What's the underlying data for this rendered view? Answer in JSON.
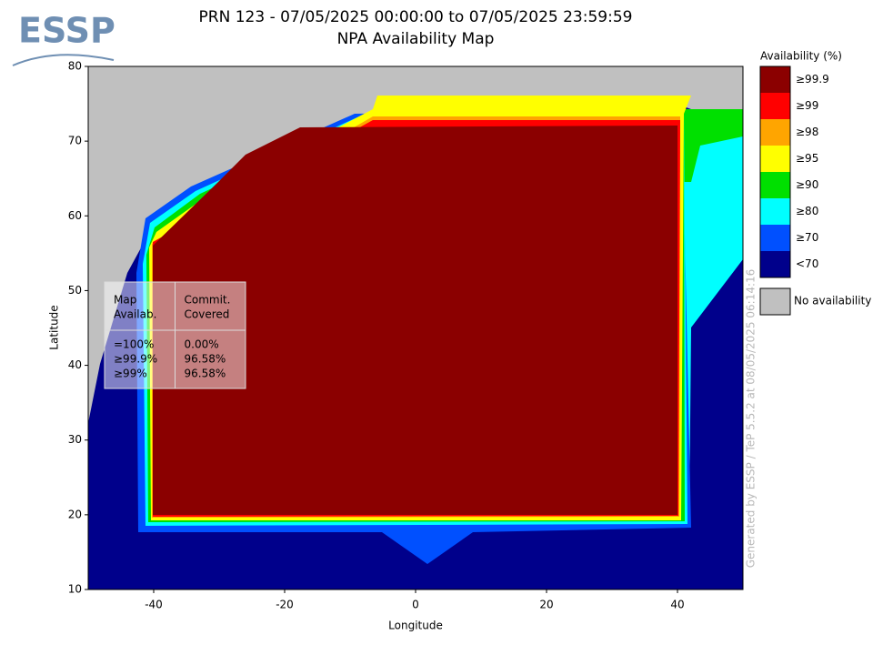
{
  "logo": "ESSP",
  "chart_data": {
    "type": "map",
    "title": "PRN 123 - 07/05/2025 00:00:00 to 07/05/2025 23:59:59",
    "subtitle": "NPA Availability Map",
    "x_label": "Longitude",
    "y_label": "Latitude",
    "xlim": [
      -50,
      50
    ],
    "xticks": [
      -40,
      -20,
      0,
      20,
      40
    ],
    "ylim": [
      10,
      80
    ],
    "yticks": [
      10,
      20,
      30,
      40,
      50,
      60,
      70,
      80
    ],
    "legend": {
      "title": "Availability (%)",
      "entries": [
        {
          "name": "≥99.9",
          "color": "#8b0000"
        },
        {
          "name": "≥99",
          "color": "#ff0000"
        },
        {
          "name": "≥98",
          "color": "#ffa500"
        },
        {
          "name": "≥95",
          "color": "#ffff00"
        },
        {
          "name": "≥90",
          "color": "#00e000"
        },
        {
          "name": "≥80",
          "color": "#00ffff"
        },
        {
          "name": "≥70",
          "color": "#0050ff"
        },
        {
          "name": "<70",
          "color": "#00008b"
        }
      ],
      "no_data": {
        "name": "No availability",
        "color": "#c0c0c0"
      }
    },
    "table": {
      "header": [
        [
          "Map",
          "Availab."
        ],
        [
          "Commit.",
          "Covered"
        ]
      ],
      "columns": [
        [
          "=100%",
          "≥99.9%",
          "≥99%"
        ],
        [
          "0.00%",
          "96.58%",
          "96.58%"
        ]
      ]
    },
    "footer": "Generated by ESSP / TeP 5.5.2 at 08/05/2025 06:14:16"
  }
}
